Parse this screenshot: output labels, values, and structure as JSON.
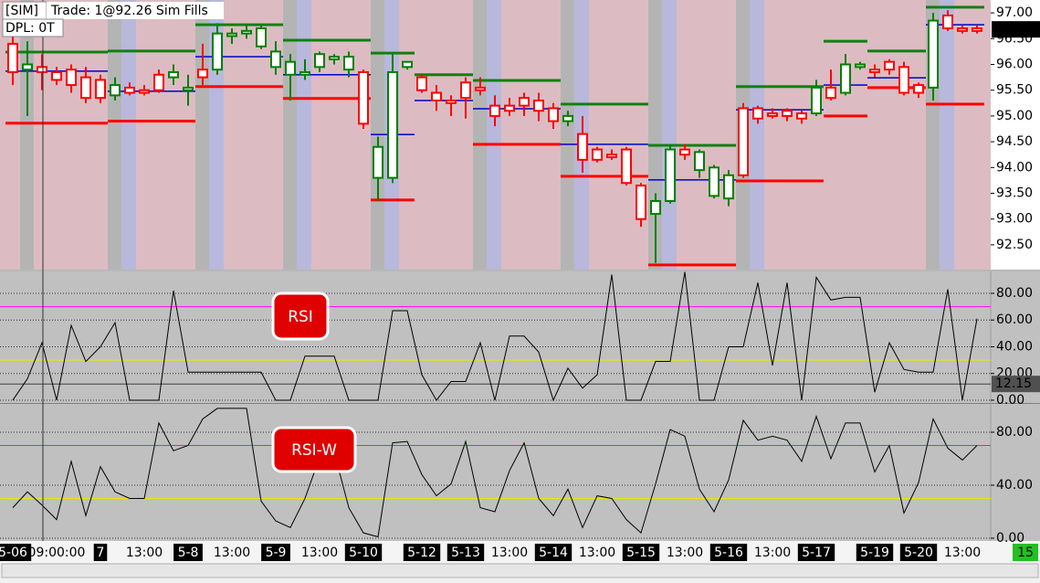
{
  "chart_data": [
    {
      "type": "candlestick",
      "annotations": {
        "account": "[SIM]",
        "trade": "Trade: 1@92.26 Sim Fills",
        "dpl": "DPL: 0T"
      },
      "open": [
        96.4,
        95.9,
        95.95,
        95.85,
        95.9,
        95.75,
        95.7,
        95.4,
        95.55,
        95.5,
        95.8,
        95.75,
        95.5,
        95.9,
        95.9,
        96.55,
        96.6,
        96.35,
        95.95,
        95.8,
        95.8,
        95.95,
        96.1,
        95.9,
        95.85,
        93.8,
        93.8,
        95.95,
        95.75,
        95.45,
        95.3,
        95.65,
        95.55,
        95.2,
        95.2,
        95.35,
        95.3,
        95.15,
        94.9,
        94.65,
        94.35,
        94.25,
        94.35,
        93.65,
        93.1,
        93.35,
        94.35,
        93.95,
        93.45,
        93.4,
        95.15,
        95.15,
        95.05,
        95.1,
        95.05,
        95.05,
        95.55,
        95.45,
        95.95,
        95.9,
        96.05,
        95.95,
        95.6,
        95.55,
        96.95,
        96.7,
        96.7
      ],
      "high": [
        96.65,
        96.45,
        96.2,
        95.95,
        96.0,
        95.95,
        95.8,
        95.75,
        95.65,
        95.6,
        95.9,
        96.0,
        95.8,
        96.4,
        96.8,
        96.7,
        96.75,
        96.75,
        96.45,
        96.2,
        96.1,
        96.25,
        96.2,
        96.25,
        95.9,
        94.6,
        96.2,
        96.05,
        95.8,
        95.6,
        95.4,
        95.75,
        95.75,
        95.4,
        95.35,
        95.45,
        95.45,
        95.25,
        95.1,
        95.0,
        94.4,
        94.35,
        94.4,
        93.7,
        93.5,
        94.45,
        94.45,
        94.35,
        94.05,
        93.95,
        95.25,
        95.2,
        95.15,
        95.15,
        95.1,
        95.7,
        95.9,
        96.2,
        96.05,
        96.0,
        96.1,
        96.05,
        95.65,
        97.0,
        97.05,
        96.75,
        96.75
      ],
      "low": [
        95.6,
        95.0,
        95.5,
        95.6,
        95.45,
        95.25,
        95.25,
        95.3,
        95.4,
        95.4,
        95.45,
        95.6,
        95.2,
        95.6,
        95.8,
        96.4,
        96.5,
        96.3,
        95.8,
        95.3,
        95.7,
        95.85,
        96.0,
        95.75,
        94.75,
        93.35,
        93.7,
        95.9,
        95.45,
        95.1,
        95.0,
        94.95,
        95.4,
        94.8,
        95.0,
        95.0,
        94.9,
        94.75,
        94.8,
        93.9,
        94.1,
        94.15,
        93.65,
        92.85,
        92.15,
        93.3,
        94.15,
        93.8,
        93.4,
        93.25,
        93.8,
        94.85,
        94.95,
        94.9,
        94.85,
        95.0,
        95.3,
        95.4,
        95.9,
        95.75,
        95.8,
        95.4,
        95.35,
        95.3,
        96.65,
        96.6,
        96.6
      ],
      "close": [
        95.85,
        96.0,
        95.85,
        95.7,
        95.6,
        95.35,
        95.35,
        95.6,
        95.45,
        95.45,
        95.5,
        95.85,
        95.55,
        95.75,
        96.6,
        96.6,
        96.65,
        96.7,
        96.25,
        96.05,
        95.85,
        96.2,
        96.15,
        96.15,
        94.85,
        94.4,
        95.85,
        96.05,
        95.5,
        95.3,
        95.25,
        95.35,
        95.5,
        95.0,
        95.1,
        95.2,
        95.1,
        94.9,
        95.0,
        94.15,
        94.15,
        94.2,
        93.7,
        93.0,
        93.35,
        94.35,
        94.25,
        94.3,
        94.0,
        93.85,
        93.85,
        94.95,
        95.0,
        95.0,
        94.95,
        95.55,
        95.35,
        96.0,
        96.0,
        95.85,
        95.9,
        95.45,
        95.45,
        96.85,
        96.7,
        96.65,
        96.65
      ],
      "up_color": "#008000",
      "down_color": "#ff0000",
      "series": [
        {
          "color": "#108010",
          "values": [
            96.24,
            96.24,
            96.24,
            96.24,
            96.24,
            96.24,
            96.24,
            96.26,
            96.26,
            96.26,
            96.26,
            96.26,
            96.26,
            96.77,
            96.77,
            96.77,
            96.77,
            96.77,
            96.77,
            96.47,
            96.47,
            96.47,
            96.47,
            96.47,
            96.47,
            96.22,
            96.22,
            96.22,
            95.8,
            95.8,
            95.8,
            95.8,
            95.69,
            95.69,
            95.69,
            95.69,
            95.69,
            95.69,
            95.23,
            95.23,
            95.23,
            95.23,
            95.23,
            95.23,
            94.43,
            94.43,
            94.43,
            94.43,
            94.43,
            94.43,
            95.57,
            95.57,
            95.57,
            95.57,
            95.57,
            95.57,
            96.45,
            96.45,
            96.45,
            96.26,
            96.26,
            96.26,
            96.26,
            97.11,
            97.11,
            97.11,
            97.11
          ]
        },
        {
          "color": "#ff0000",
          "values": [
            94.86,
            94.86,
            94.86,
            94.86,
            94.86,
            94.86,
            94.86,
            94.9,
            94.9,
            94.9,
            94.9,
            94.9,
            94.9,
            95.57,
            95.57,
            95.57,
            95.57,
            95.57,
            95.57,
            95.34,
            95.34,
            95.34,
            95.34,
            95.34,
            95.34,
            93.37,
            93.37,
            93.37,
            null,
            null,
            null,
            null,
            94.45,
            94.45,
            94.45,
            94.45,
            94.45,
            94.45,
            93.83,
            93.83,
            93.83,
            93.83,
            93.83,
            93.83,
            92.11,
            92.11,
            92.11,
            92.11,
            92.11,
            92.11,
            93.74,
            93.74,
            93.74,
            93.74,
            93.74,
            93.74,
            95.0,
            95.0,
            95.0,
            95.55,
            95.55,
            95.55,
            95.55,
            95.23,
            95.23,
            95.23,
            95.23
          ]
        },
        {
          "color": "#0000cc",
          "values": [
            95.87,
            95.87,
            95.87,
            95.87,
            95.87,
            95.87,
            95.87,
            95.48,
            95.48,
            95.48,
            95.48,
            95.48,
            95.48,
            96.15,
            96.15,
            96.15,
            96.15,
            96.15,
            96.15,
            95.8,
            95.8,
            95.8,
            95.8,
            95.8,
            95.8,
            94.64,
            94.64,
            94.64,
            95.3,
            95.3,
            95.3,
            95.3,
            95.14,
            95.14,
            95.14,
            95.14,
            95.14,
            95.14,
            94.45,
            94.45,
            94.45,
            94.45,
            94.45,
            94.45,
            93.76,
            93.76,
            93.76,
            93.76,
            93.76,
            93.76,
            95.12,
            95.12,
            95.12,
            95.12,
            95.12,
            95.12,
            95.6,
            95.6,
            95.6,
            95.74,
            95.74,
            95.74,
            95.74,
            96.77,
            96.77,
            96.77,
            96.77
          ]
        }
      ],
      "last_value": 96.68,
      "ylim": [
        92.02,
        97.25
      ],
      "yticks": [
        {
          "value": 92.5,
          "label": "92.50"
        },
        {
          "value": 93,
          "label": "93.00"
        },
        {
          "value": 93.5,
          "label": "93.50"
        },
        {
          "value": 94,
          "label": "94.00"
        },
        {
          "value": 94.5,
          "label": "94.50"
        },
        {
          "value": 95,
          "label": "95.00"
        },
        {
          "value": 95.5,
          "label": "95.50"
        },
        {
          "value": 96,
          "label": "96.00"
        },
        {
          "value": 96.5,
          "label": "96.50"
        },
        {
          "value": 97,
          "label": "97.00"
        }
      ],
      "grid": false
    },
    {
      "type": "line",
      "title": "RSI",
      "color": "#000000",
      "values": [
        0,
        16,
        43,
        0,
        56,
        29,
        40,
        58,
        0,
        0,
        0,
        82,
        21,
        21,
        21,
        21,
        21,
        21,
        0,
        0,
        33,
        33,
        33,
        0,
        0,
        0,
        67,
        67,
        19,
        0,
        14,
        14,
        43,
        0,
        48,
        48,
        36,
        0,
        24,
        9,
        19,
        94,
        0,
        0,
        29,
        29,
        96,
        0,
        0,
        40,
        40,
        88,
        26,
        88,
        0,
        92,
        75,
        77,
        77,
        6,
        43,
        23,
        21,
        21,
        83,
        0,
        61
      ],
      "reference_lines": [
        {
          "value": 70,
          "color": "#ff00ff"
        },
        {
          "value": 30,
          "color": "#e8e800"
        }
      ],
      "cursor_value": 12.15,
      "ylim": [
        -1.4,
        96.4
      ],
      "yticks": [
        {
          "value": 0,
          "label": "0.00"
        },
        {
          "value": 20,
          "label": "20.00"
        },
        {
          "value": 40,
          "label": "40.00"
        },
        {
          "value": 60,
          "label": "60.00"
        },
        {
          "value": 80,
          "label": "80.00"
        }
      ],
      "grid": true
    },
    {
      "type": "line",
      "title": "RSI-W",
      "color": "#000000",
      "values": [
        23,
        35,
        25,
        14,
        58,
        17,
        54,
        35,
        30,
        30,
        87,
        66,
        70,
        90,
        98,
        98,
        98,
        28,
        13,
        8,
        30,
        61,
        65,
        23,
        4,
        1,
        72,
        73,
        48,
        32,
        41,
        73,
        23,
        20,
        51,
        72,
        30,
        17,
        37,
        8,
        32,
        30,
        14,
        4,
        41,
        82,
        77,
        37,
        20,
        44,
        89,
        74,
        77,
        74,
        58,
        92,
        60,
        87,
        87,
        50,
        70,
        19,
        42,
        90,
        68,
        59,
        70
      ],
      "reference_lines": [
        {
          "value": 70,
          "color": "#ff00ff"
        },
        {
          "value": 30,
          "color": "#e8e800"
        }
      ],
      "ylim": [
        -2.1,
        100.7
      ],
      "yticks": [
        {
          "value": 0,
          "label": "0.00"
        },
        {
          "value": 40,
          "label": "40.00"
        },
        {
          "value": 80,
          "label": "80.00"
        }
      ],
      "grid": true,
      "categories": [
        "5-06",
        null,
        null,
        "09:00:00",
        null,
        null,
        "7",
        null,
        null,
        "13:00",
        null,
        null,
        "5-8",
        null,
        null,
        "13:00",
        null,
        null,
        "5-9",
        null,
        null,
        "13:00",
        null,
        null,
        "5-10",
        null,
        null,
        null,
        "5-12",
        null,
        null,
        "5-13",
        null,
        null,
        "13:00",
        null,
        null,
        "5-14",
        null,
        null,
        "13:00",
        null,
        null,
        "5-15",
        null,
        null,
        "13:00",
        null,
        null,
        "5-16",
        null,
        null,
        "13:00",
        null,
        null,
        "5-17",
        null,
        null,
        null,
        "5-19",
        null,
        null,
        "5-20",
        null,
        null,
        "13:00",
        null
      ],
      "corner_label": "15"
    }
  ]
}
